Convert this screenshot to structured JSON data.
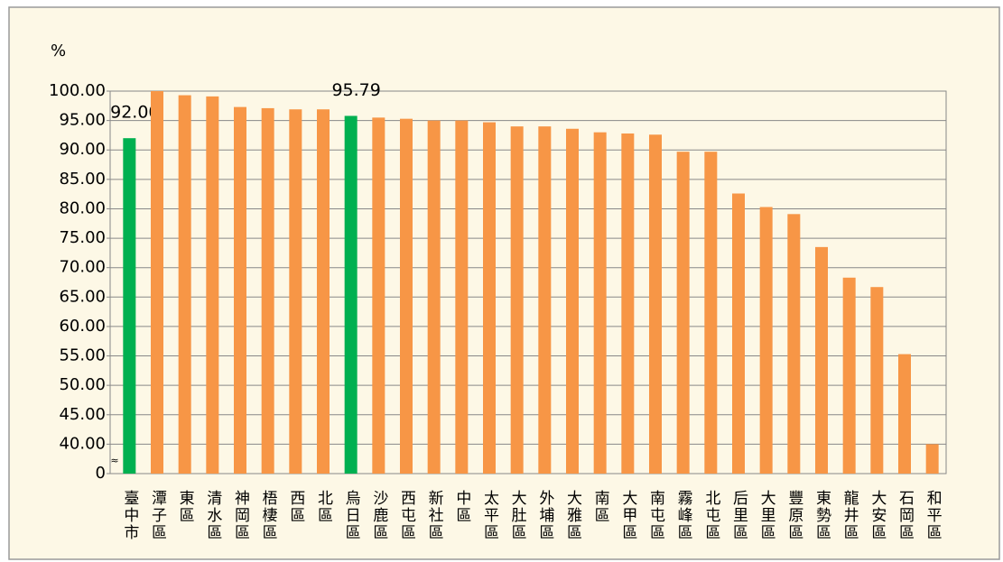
{
  "chart_data": {
    "type": "bar",
    "y_unit": "%",
    "categories": [
      "臺中市",
      "潭子區",
      "東區",
      "清水區",
      "神岡區",
      "梧棲區",
      "西區",
      "北區",
      "烏日區",
      "沙鹿區",
      "西屯區",
      "新社區",
      "中區",
      "太平區",
      "大肚區",
      "外埔區",
      "大雅區",
      "南區",
      "大甲區",
      "南屯區",
      "霧峰區",
      "北屯區",
      "后里區",
      "大里區",
      "豐原區",
      "東勢區",
      "龍井區",
      "大安區",
      "石岡區",
      "和平區"
    ],
    "values": [
      92.0,
      100.0,
      99.3,
      99.1,
      97.3,
      97.1,
      96.9,
      96.9,
      95.79,
      95.5,
      95.3,
      95.0,
      95.0,
      94.7,
      94.0,
      94.0,
      93.6,
      93.0,
      92.8,
      92.6,
      89.7,
      89.7,
      82.6,
      80.3,
      79.1,
      73.5,
      68.3,
      66.7,
      55.3,
      40.0
    ],
    "value_labels": [
      "92.00",
      null,
      null,
      null,
      null,
      null,
      null,
      null,
      "95.79",
      null,
      null,
      null,
      null,
      null,
      null,
      null,
      null,
      null,
      null,
      null,
      null,
      null,
      null,
      null,
      null,
      null,
      null,
      null,
      null,
      null
    ],
    "colors": [
      "#00b050",
      "#f79646",
      "#f79646",
      "#f79646",
      "#f79646",
      "#f79646",
      "#f79646",
      "#f79646",
      "#00b050",
      "#f79646",
      "#f79646",
      "#f79646",
      "#f79646",
      "#f79646",
      "#f79646",
      "#f79646",
      "#f79646",
      "#f79646",
      "#f79646",
      "#f79646",
      "#f79646",
      "#f79646",
      "#f79646",
      "#f79646",
      "#f79646",
      "#f79646",
      "#f79646",
      "#f79646",
      "#f79646",
      "#f79646"
    ],
    "ylim": [
      0,
      100
    ],
    "yticks": [
      0,
      {
        "value": 40,
        "label": "40.00"
      },
      {
        "value": 45,
        "label": "45.00"
      },
      {
        "value": 50,
        "label": "50.00"
      },
      {
        "value": 55,
        "label": "55.00"
      },
      {
        "value": 60,
        "label": "60.00"
      },
      {
        "value": 65,
        "label": "65.00"
      },
      {
        "value": 70,
        "label": "70.00"
      },
      {
        "value": 75,
        "label": "75.00"
      },
      {
        "value": 80,
        "label": "80.00"
      },
      {
        "value": 85,
        "label": "85.00"
      },
      {
        "value": 90,
        "label": "90.00"
      },
      {
        "value": 95,
        "label": "95.00"
      },
      {
        "value": 100,
        "label": "100.00"
      }
    ],
    "grid": true
  }
}
